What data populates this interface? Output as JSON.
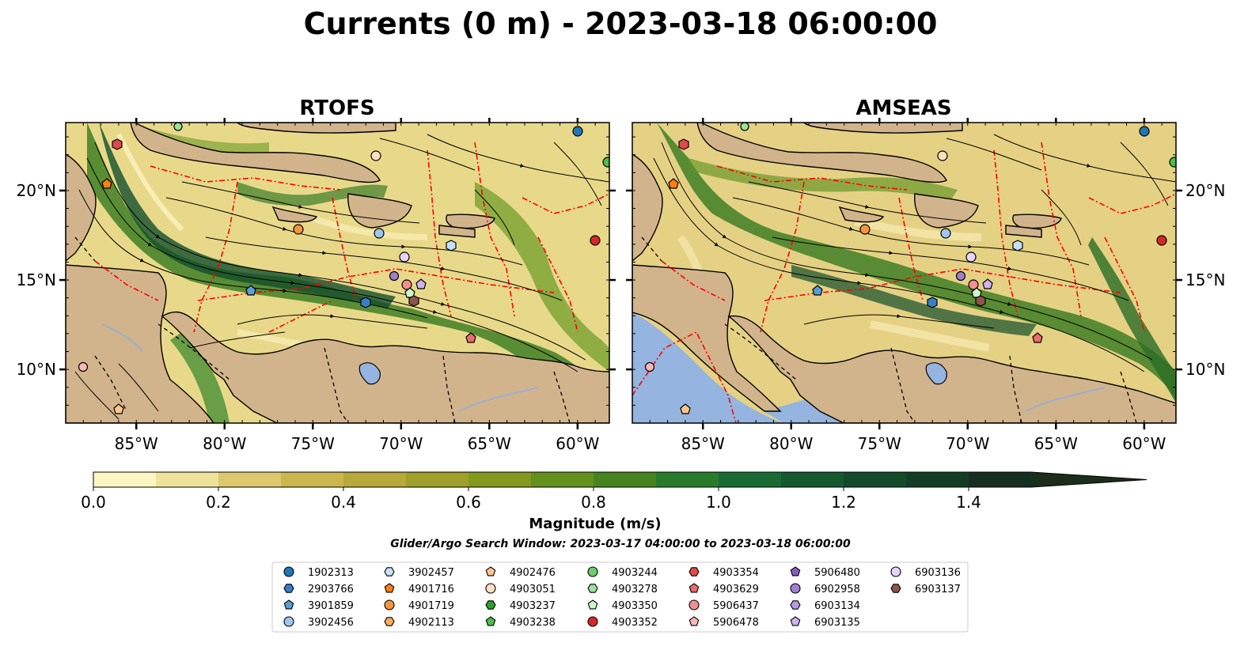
{
  "chart_data": {
    "type": "heatmap",
    "title": "Currents (0 m) - 2023-03-18 06:00:00",
    "panels": [
      {
        "title": "RTOFS"
      },
      {
        "title": "AMSEAS"
      }
    ],
    "x_ticks": [
      "85°W",
      "80°W",
      "75°W",
      "70°W",
      "65°W",
      "60°W"
    ],
    "x_tick_values": [
      -85,
      -80,
      -75,
      -70,
      -65,
      -60
    ],
    "y_ticks": [
      "20°N",
      "15°N",
      "10°N"
    ],
    "y_tick_values": [
      20,
      15,
      10
    ],
    "xlim": [
      -89,
      -58.2
    ],
    "ylim": [
      7,
      23.8
    ],
    "colorbar": {
      "label": "Magnitude (m/s)",
      "range": [
        0,
        1.5
      ],
      "extend": "max",
      "tick_labels": [
        "0.0",
        "0.2",
        "0.4",
        "0.6",
        "0.8",
        "1.0",
        "1.2",
        "1.4"
      ],
      "tick_values": [
        0,
        0.2,
        0.4,
        0.6,
        0.8,
        1.0,
        1.2,
        1.4
      ],
      "colors": [
        "#fcf6c2",
        "#efe29a",
        "#ddc86e",
        "#ccb74f",
        "#b7a93a",
        "#9fa02a",
        "#84991e",
        "#64901c",
        "#458420",
        "#2a7a2c",
        "#1a6a34",
        "#145a2e",
        "#124a2a",
        "#143c24",
        "#162e20"
      ],
      "extend_color": "#1a2e1a"
    },
    "search_window": "Glider/Argo Search Window: 2023-03-17 04:00:00 to 2023-03-18 06:00:00",
    "legend": [
      {
        "id": "1902313",
        "marker": "circle",
        "color": "#1f77b4"
      },
      {
        "id": "2903766",
        "marker": "hexagon",
        "color": "#3a7fc6"
      },
      {
        "id": "3901859",
        "marker": "pentagon",
        "color": "#5b9ddb"
      },
      {
        "id": "3902456",
        "marker": "circle",
        "color": "#9ec7ee"
      },
      {
        "id": "3902457",
        "marker": "hexagon",
        "color": "#c5e2fb"
      },
      {
        "id": "4901716",
        "marker": "pentagon",
        "color": "#ff7f0e"
      },
      {
        "id": "4901719",
        "marker": "circle",
        "color": "#f4953a"
      },
      {
        "id": "4902113",
        "marker": "hexagon",
        "color": "#fbab60"
      },
      {
        "id": "4902476",
        "marker": "pentagon",
        "color": "#fdc68d"
      },
      {
        "id": "4903051",
        "marker": "circle",
        "color": "#fde0c2"
      },
      {
        "id": "4903237",
        "marker": "hexagon",
        "color": "#2ca02c"
      },
      {
        "id": "4903238",
        "marker": "pentagon",
        "color": "#4cbd4c"
      },
      {
        "id": "4903244",
        "marker": "circle",
        "color": "#6fcc6f"
      },
      {
        "id": "4903278",
        "marker": "hexagon",
        "color": "#9be39b"
      },
      {
        "id": "4903350",
        "marker": "pentagon",
        "color": "#cbf7cb"
      },
      {
        "id": "4903352",
        "marker": "circle",
        "color": "#d62728"
      },
      {
        "id": "4903354",
        "marker": "hexagon",
        "color": "#e04a4b"
      },
      {
        "id": "4903629",
        "marker": "pentagon",
        "color": "#ea6c6d"
      },
      {
        "id": "5906437",
        "marker": "circle",
        "color": "#f28f8f"
      },
      {
        "id": "5906478",
        "marker": "pentagon",
        "color": "#f8b7b7"
      },
      {
        "id": "5906480",
        "marker": "pentagon",
        "color": "#8c5cc0"
      },
      {
        "id": "6902958",
        "marker": "circle",
        "color": "#a07fd0"
      },
      {
        "id": "6903134",
        "marker": "hexagon",
        "color": "#b49ce0"
      },
      {
        "id": "6903135",
        "marker": "pentagon",
        "color": "#ccb5ee"
      },
      {
        "id": "6903136",
        "marker": "circle",
        "color": "#e6d4fb"
      },
      {
        "id": "6903137",
        "marker": "hexagon",
        "color": "#8c564b"
      }
    ],
    "points": [
      {
        "id": "1902313",
        "lon": -59.7,
        "lat": 23.3
      },
      {
        "id": "4903278",
        "lon": -82.5,
        "lat": 23.6
      },
      {
        "id": "4903238",
        "lon": -58.2,
        "lat": 21.6
      },
      {
        "id": "4903354",
        "lon": -86.1,
        "lat": 22.6
      },
      {
        "id": "4901716",
        "lon": -86.8,
        "lat": 20.4
      },
      {
        "id": "4903051",
        "lon": -71.9,
        "lat": 21.9
      },
      {
        "id": "4901719",
        "lon": -75.6,
        "lat": 17.9
      },
      {
        "id": "3902456",
        "lon": -71.1,
        "lat": 17.7
      },
      {
        "id": "3902457",
        "lon": -66.9,
        "lat": 17.0
      },
      {
        "id": "4903352",
        "lon": -58.6,
        "lat": 17.3
      },
      {
        "id": "6903136",
        "lon": -69.9,
        "lat": 16.4
      },
      {
        "id": "6902958",
        "lon": -70.6,
        "lat": 15.3
      },
      {
        "id": "5906437",
        "lon": -69.6,
        "lat": 14.8
      },
      {
        "id": "6903135",
        "lon": -68.8,
        "lat": 14.8
      },
      {
        "id": "4903350",
        "lon": -69.4,
        "lat": 14.4
      },
      {
        "id": "6903137",
        "lon": -69.1,
        "lat": 14.0
      },
      {
        "id": "3901859",
        "lon": -78.3,
        "lat": 14.5
      },
      {
        "id": "2903766",
        "lon": -72.0,
        "lat": 13.8
      },
      {
        "id": "4903629",
        "lon": -65.9,
        "lat": 11.8
      },
      {
        "id": "5906478",
        "lon": -88.1,
        "lat": 10.2
      },
      {
        "id": "4902476",
        "lon": -86.1,
        "lat": 7.8
      }
    ]
  }
}
